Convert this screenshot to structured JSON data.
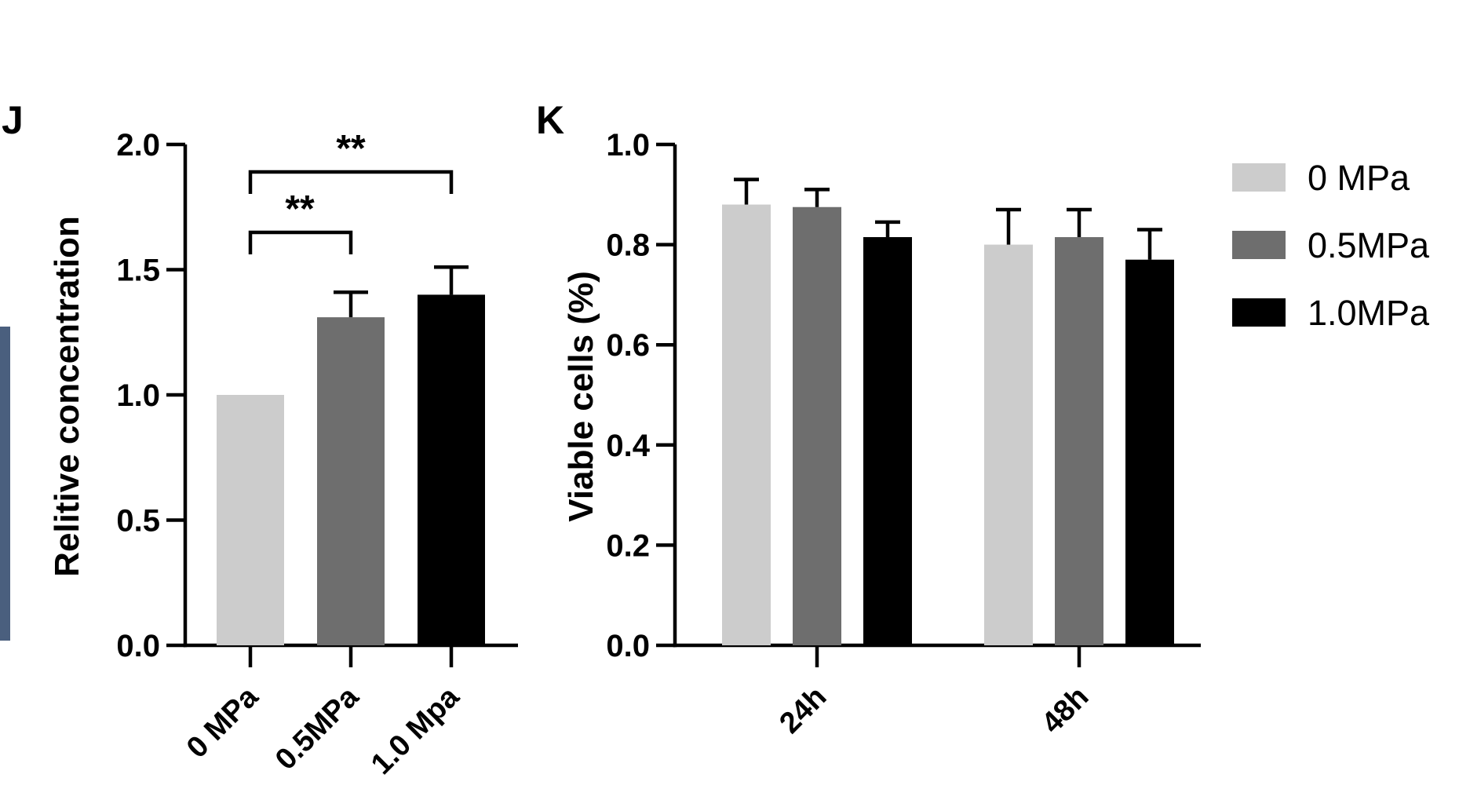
{
  "chart_data": [
    {
      "panel": "J",
      "type": "bar",
      "categories": [
        "0 MPa",
        "0.5MPa",
        "1.0 Mpa"
      ],
      "values": [
        1.0,
        1.31,
        1.4
      ],
      "errors": [
        0,
        0.1,
        0.11
      ],
      "colors": [
        "#cccccc",
        "#6e6e6e",
        "#000000"
      ],
      "ylabel": "Relitive concentration",
      "ylim": [
        0,
        2.0
      ],
      "yticks": [
        "0.0",
        "0.5",
        "1.0",
        "1.5",
        "2.0"
      ],
      "significance": [
        {
          "from": 0,
          "to": 1,
          "label": "**"
        },
        {
          "from": 0,
          "to": 2,
          "label": "**"
        }
      ]
    },
    {
      "panel": "K",
      "type": "bar",
      "categories": [
        "24h",
        "48h"
      ],
      "series": [
        {
          "name": "0 MPa",
          "color": "#cccccc",
          "values": [
            0.88,
            0.8
          ],
          "errors": [
            0.05,
            0.07
          ]
        },
        {
          "name": "0.5MPa",
          "color": "#6e6e6e",
          "values": [
            0.875,
            0.815
          ],
          "errors": [
            0.035,
            0.055
          ]
        },
        {
          "name": "1.0MPa",
          "color": "#000000",
          "values": [
            0.815,
            0.77
          ],
          "errors": [
            0.03,
            0.06
          ]
        }
      ],
      "ylabel": "Viable cells (%)",
      "ylim": [
        0,
        1.0
      ],
      "yticks": [
        "0.0",
        "0.2",
        "0.4",
        "0.6",
        "0.8",
        "1.0"
      ],
      "legend_position": "top-right"
    }
  ]
}
